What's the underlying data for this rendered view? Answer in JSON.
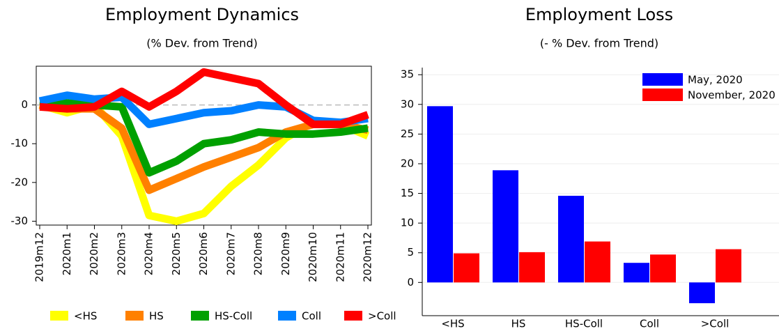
{
  "chart_data": [
    {
      "type": "line",
      "title": "Employment Dynamics",
      "subtitle": "(% Dev. from Trend)",
      "categories": [
        "2019m12",
        "2020m1",
        "2020m2",
        "2020m3",
        "2020m4",
        "2020m5",
        "2020m6",
        "2020m7",
        "2020m8",
        "2020m9",
        "2020m10",
        "2020m11",
        "2020m12"
      ],
      "series": [
        {
          "name": "<HS",
          "color": "#ffff00",
          "values": [
            0,
            -2,
            0,
            -8,
            -28.5,
            -30,
            -28,
            -21,
            -15.5,
            -8.5,
            -4.5,
            -5,
            -8
          ]
        },
        {
          "name": "HS",
          "color": "#ff8000",
          "values": [
            0,
            -1,
            -1,
            -6,
            -22,
            -19,
            -16,
            -13.5,
            -11,
            -7,
            -5,
            -5,
            -6.5
          ]
        },
        {
          "name": "HS-Coll",
          "color": "#00a000",
          "values": [
            1,
            0.5,
            0,
            -0.5,
            -17.5,
            -14.5,
            -10,
            -9,
            -7,
            -7.5,
            -7.5,
            -7,
            -6
          ]
        },
        {
          "name": "Coll",
          "color": "#0080ff",
          "values": [
            1,
            2.5,
            1.5,
            2,
            -5,
            -3.5,
            -2,
            -1.5,
            0,
            -0.5,
            -4,
            -4.5,
            -3.5
          ]
        },
        {
          "name": ">Coll",
          "color": "#ff0000",
          "values": [
            -0.5,
            -1,
            -0.5,
            3.5,
            -0.5,
            3.5,
            8.5,
            7,
            5.5,
            0,
            -5,
            -5,
            -2.5
          ]
        }
      ],
      "ylim": [
        -31,
        10
      ],
      "yticks": [
        -30,
        -20,
        -10,
        0
      ],
      "grid": false,
      "zero_line": true,
      "legend": "bottom"
    },
    {
      "type": "bar",
      "title": "Employment Loss",
      "subtitle": "(- % Dev. from Trend)",
      "categories": [
        "<HS",
        "HS",
        "HS-Coll",
        "Coll",
        ">Coll"
      ],
      "series": [
        {
          "name": "May, 2020",
          "color": "#0000ff",
          "values": [
            29.7,
            18.9,
            14.6,
            3.3,
            -3.5
          ]
        },
        {
          "name": "November, 2020",
          "color": "#ff0000",
          "values": [
            4.9,
            5.1,
            6.9,
            4.7,
            5.6
          ]
        }
      ],
      "ylim": [
        -5.6,
        36.2
      ],
      "yticks": [
        0,
        5,
        10,
        15,
        20,
        25,
        30,
        35
      ],
      "grid": true,
      "zero_line": false,
      "legend": "top-right"
    }
  ]
}
